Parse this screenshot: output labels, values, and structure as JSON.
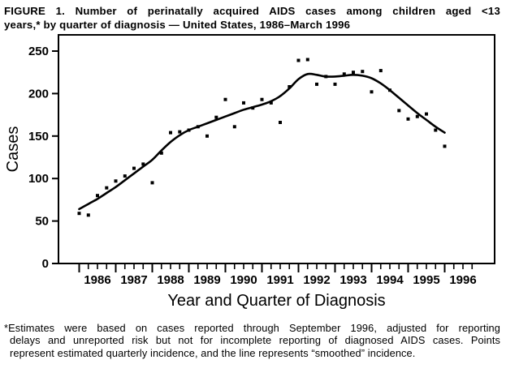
{
  "title": {
    "line1": "FIGURE 1. Number of perinatally acquired AIDS cases among children aged <13",
    "line2": "years,* by quarter of diagnosis — United States, 1986–March 1996"
  },
  "footnote": {
    "line1": "*Estimates were based on cases reported through September 1996, adjusted for reporting",
    "line2": "delays and unreported risk but not for incomplete reporting of diagnosed AIDS cases. Points",
    "line3": "represent estimated quarterly incidence, and the line represents “smoothed” incidence."
  },
  "colors": {
    "ink": "#000000",
    "paper": "#ffffff"
  },
  "chart_data": {
    "type": "scatter",
    "title": "Number of perinatally acquired AIDS cases among children aged <13 years, by quarter of diagnosis, United States, 1986–March 1996",
    "xlabel": "Year and Quarter of Diagnosis",
    "ylabel": "Cases",
    "grid": false,
    "legend": "none",
    "x_tick_years": [
      "1986",
      "1987",
      "1988",
      "1989",
      "1990",
      "1991",
      "1992",
      "1993",
      "1994",
      "1995",
      "1996"
    ],
    "y_ticks": [
      0,
      50,
      100,
      150,
      200,
      250
    ],
    "ylim": [
      0,
      269
    ],
    "quarters": [
      "1986Q1",
      "1986Q2",
      "1986Q3",
      "1986Q4",
      "1987Q1",
      "1987Q2",
      "1987Q3",
      "1987Q4",
      "1988Q1",
      "1988Q2",
      "1988Q3",
      "1988Q4",
      "1989Q1",
      "1989Q2",
      "1989Q3",
      "1989Q4",
      "1990Q1",
      "1990Q2",
      "1990Q3",
      "1990Q4",
      "1991Q1",
      "1991Q2",
      "1991Q3",
      "1991Q4",
      "1992Q1",
      "1992Q2",
      "1992Q3",
      "1992Q4",
      "1993Q1",
      "1993Q2",
      "1993Q3",
      "1993Q4",
      "1994Q1",
      "1994Q2",
      "1994Q3",
      "1994Q4",
      "1995Q1",
      "1995Q2",
      "1995Q3",
      "1995Q4",
      "1996Q1"
    ],
    "series": [
      {
        "name": "Estimated quarterly incidence",
        "style": "points",
        "marker": "filled-square",
        "values": [
          59,
          57,
          80,
          89,
          97,
          103,
          112,
          117,
          95,
          130,
          154,
          155,
          157,
          161,
          150,
          172,
          193,
          161,
          189,
          183,
          193,
          189,
          166,
          208,
          239,
          240,
          211,
          220,
          211,
          223,
          225,
          226,
          202,
          227,
          204,
          180,
          170,
          173,
          176,
          157,
          138
        ]
      },
      {
        "name": "Smoothed incidence",
        "style": "line",
        "values": [
          64,
          70,
          76,
          83,
          90,
          98,
          106,
          114,
          122,
          133,
          143,
          151,
          157,
          161,
          165,
          169,
          173,
          177,
          181,
          184,
          187,
          191,
          197,
          206,
          217,
          223,
          222,
          220,
          220,
          221,
          222,
          221,
          218,
          212,
          204,
          195,
          186,
          177,
          169,
          161,
          154
        ]
      }
    ]
  }
}
